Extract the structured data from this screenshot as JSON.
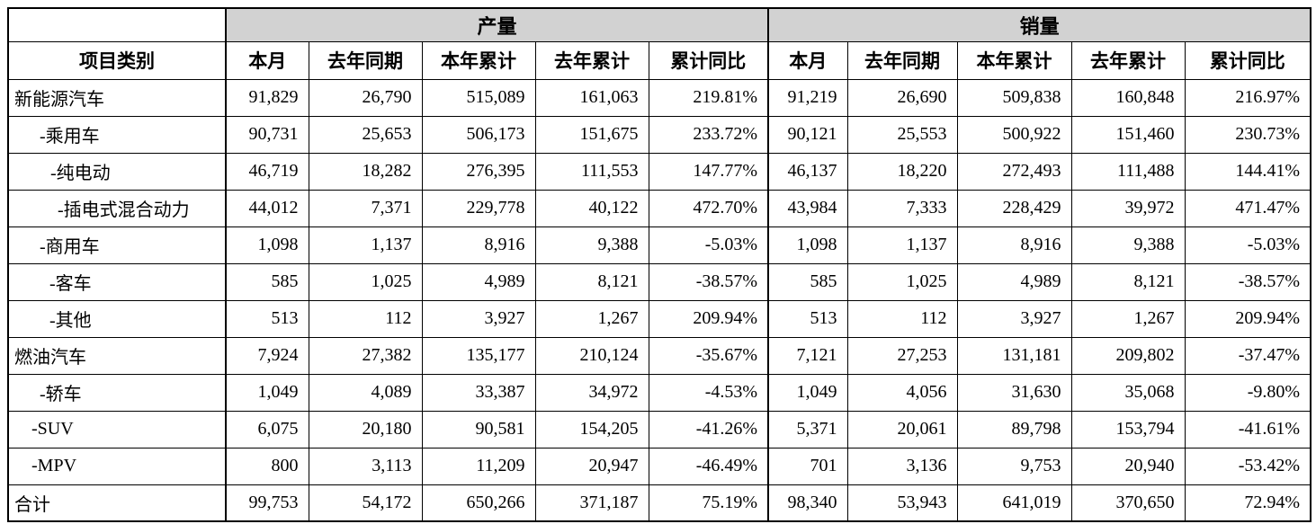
{
  "table": {
    "corner_label": "项目类别",
    "groups": [
      {
        "label": "产量"
      },
      {
        "label": "销量"
      }
    ],
    "sub_headers": [
      "本月",
      "去年同期",
      "本年累计",
      "去年累计",
      "累计同比"
    ],
    "rows": [
      {
        "label": "新能源汽车",
        "indent": 6,
        "production": [
          "91,829",
          "26,790",
          "515,089",
          "161,063",
          "219.81%"
        ],
        "sales": [
          "91,219",
          "26,690",
          "509,838",
          "160,848",
          "216.97%"
        ]
      },
      {
        "label": "-乘用车",
        "indent": 34,
        "production": [
          "90,731",
          "25,653",
          "506,173",
          "151,675",
          "233.72%"
        ],
        "sales": [
          "90,121",
          "25,553",
          "500,922",
          "151,460",
          "230.73%"
        ]
      },
      {
        "label": "-纯电动",
        "indent": 46,
        "production": [
          "46,719",
          "18,282",
          "276,395",
          "111,553",
          "147.77%"
        ],
        "sales": [
          "46,137",
          "18,220",
          "272,493",
          "111,488",
          "144.41%"
        ]
      },
      {
        "label": "-插电式混合动力",
        "indent": 54,
        "production": [
          "44,012",
          "7,371",
          "229,778",
          "40,122",
          "472.70%"
        ],
        "sales": [
          "43,984",
          "7,333",
          "228,429",
          "39,972",
          "471.47%"
        ]
      },
      {
        "label": "-商用车",
        "indent": 34,
        "production": [
          "1,098",
          "1,137",
          "8,916",
          "9,388",
          "-5.03%"
        ],
        "sales": [
          "1,098",
          "1,137",
          "8,916",
          "9,388",
          "-5.03%"
        ]
      },
      {
        "label": "-客车",
        "indent": 45,
        "production": [
          "585",
          "1,025",
          "4,989",
          "8,121",
          "-38.57%"
        ],
        "sales": [
          "585",
          "1,025",
          "4,989",
          "8,121",
          "-38.57%"
        ]
      },
      {
        "label": "-其他",
        "indent": 45,
        "production": [
          "513",
          "112",
          "3,927",
          "1,267",
          "209.94%"
        ],
        "sales": [
          "513",
          "112",
          "3,927",
          "1,267",
          "209.94%"
        ]
      },
      {
        "label": "燃油汽车",
        "indent": 6,
        "production": [
          "7,924",
          "27,382",
          "135,177",
          "210,124",
          "-35.67%"
        ],
        "sales": [
          "7,121",
          "27,253",
          "131,181",
          "209,802",
          "-37.47%"
        ]
      },
      {
        "label": "-轿车",
        "indent": 34,
        "production": [
          "1,049",
          "4,089",
          "33,387",
          "34,972",
          "-4.53%"
        ],
        "sales": [
          "1,049",
          "4,056",
          "31,630",
          "35,068",
          "-9.80%"
        ]
      },
      {
        "label": "-SUV",
        "indent": 25,
        "production": [
          "6,075",
          "20,180",
          "90,581",
          "154,205",
          "-41.26%"
        ],
        "sales": [
          "5,371",
          "20,061",
          "89,798",
          "153,794",
          "-41.61%"
        ]
      },
      {
        "label": "-MPV",
        "indent": 25,
        "production": [
          "800",
          "3,113",
          "11,209",
          "20,947",
          "-46.49%"
        ],
        "sales": [
          "701",
          "3,136",
          "9,753",
          "20,940",
          "-53.42%"
        ]
      },
      {
        "label": "合计",
        "indent": 6,
        "production": [
          "99,753",
          "54,172",
          "650,266",
          "371,187",
          "75.19%"
        ],
        "sales": [
          "98,340",
          "53,943",
          "641,019",
          "370,650",
          "72.94%"
        ]
      }
    ]
  },
  "colors": {
    "header_fill": "#d2d2d2",
    "border": "#000000",
    "text": "#000000",
    "background": "#ffffff"
  }
}
